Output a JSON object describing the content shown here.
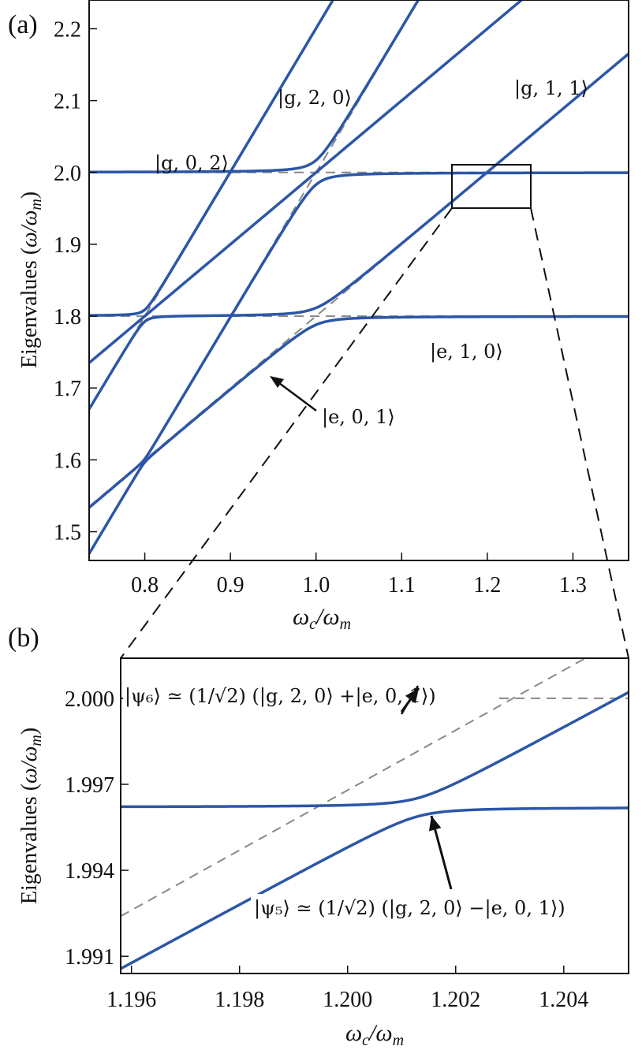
{
  "chart_data": [
    {
      "panel": "(a)",
      "type": "line",
      "xlabel": "ω_c/ω_m",
      "ylabel": "Eigenvalues (ω/ω_m)",
      "xlim": [
        0.735,
        1.365
      ],
      "ylim": [
        1.46,
        2.24
      ],
      "xticks": [
        "0.8",
        "0.9",
        "1.0",
        "1.1",
        "1.2",
        "1.3"
      ],
      "xtick_values": [
        0.8,
        0.9,
        1.0,
        1.1,
        1.2,
        1.3
      ],
      "yticks": [
        "1.5",
        "1.6",
        "1.7",
        "1.8",
        "1.9",
        "2.0",
        "2.1",
        "2.2"
      ],
      "ytick_values": [
        1.5,
        1.6,
        1.7,
        1.8,
        1.9,
        2.0,
        2.1,
        2.2
      ],
      "annotations": [
        "|g, 2, 0⟩",
        "|g, 1, 1⟩",
        "|g, 0, 2⟩",
        "|e, 1, 0⟩",
        "|e, 0, 1⟩"
      ],
      "series_color": "#2c56a8",
      "bare_color": "#888888",
      "zoom_box": {
        "x": [
          1.16,
          1.25
        ],
        "y": [
          1.97,
          2.03
        ]
      }
    },
    {
      "panel": "(b)",
      "type": "line",
      "xlabel": "ω_c/ω_m",
      "ylabel": "Eigenvalues (ω/ω_m)",
      "xlim": [
        1.1958,
        1.2052
      ],
      "ylim": [
        1.9904,
        2.0014
      ],
      "xticks": [
        "1.196",
        "1.198",
        "1.200",
        "1.202",
        "1.204"
      ],
      "xtick_values": [
        1.196,
        1.198,
        1.2,
        1.202,
        1.204
      ],
      "yticks": [
        "1.991",
        "1.994",
        "1.997",
        "2.000"
      ],
      "ytick_values": [
        1.991,
        1.994,
        1.997,
        2.0
      ],
      "annotations": [
        "|ψ₆⟩ ≃ (1/√2) (|g, 2, 0⟩ +|e, 0, 1⟩)",
        "|ψ₅⟩ ≃ (1/√2) (|g, 2, 0⟩ −|e, 0, 1⟩)"
      ],
      "series_color": "#2c56a8",
      "bare_color": "#888888"
    }
  ]
}
